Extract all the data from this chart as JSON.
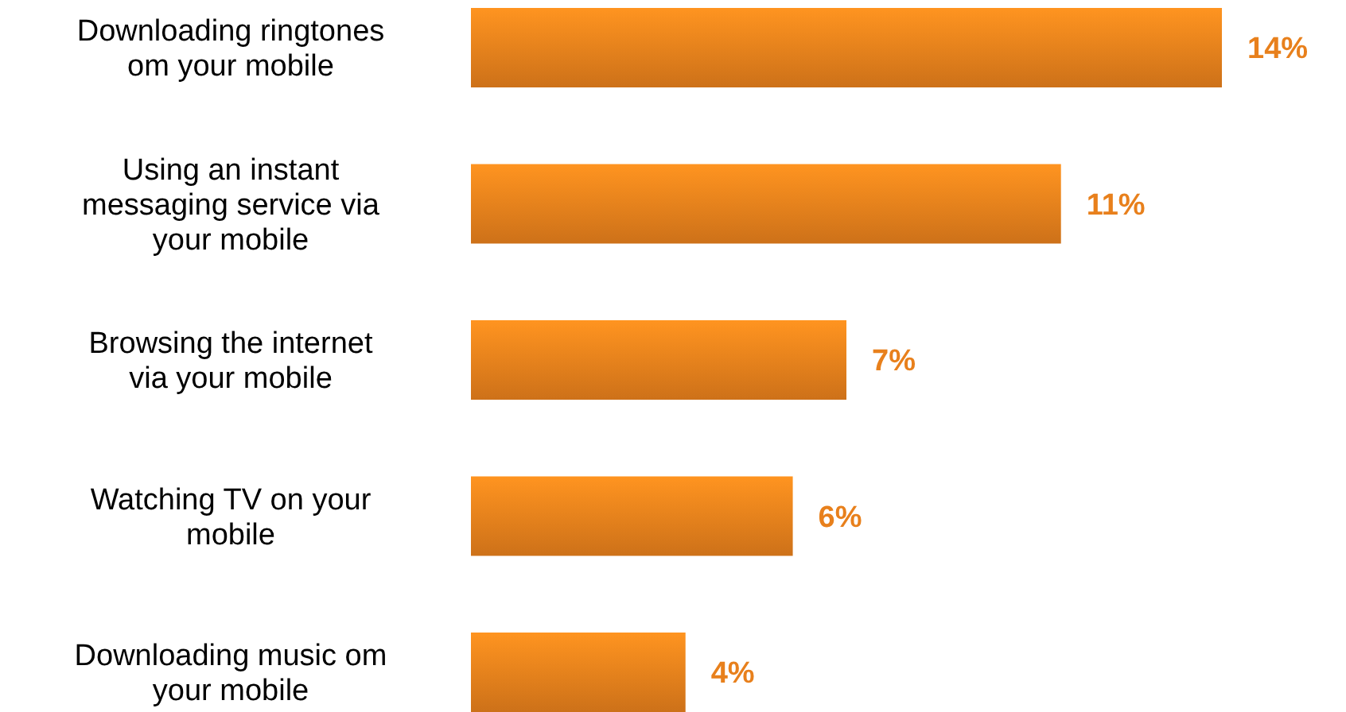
{
  "chart_data": {
    "type": "bar",
    "orientation": "horizontal",
    "categories": [
      "Downloading ringtones om your mobile",
      "Using an instant messaging service via your mobile",
      "Browsing the internet via your mobile",
      "Watching TV on your mobile",
      "Downloading music om your mobile"
    ],
    "values": [
      14,
      11,
      7,
      6,
      4
    ],
    "value_labels": [
      "14%",
      "11%",
      "7%",
      "6%",
      "4%"
    ],
    "color": "#e8801c"
  }
}
